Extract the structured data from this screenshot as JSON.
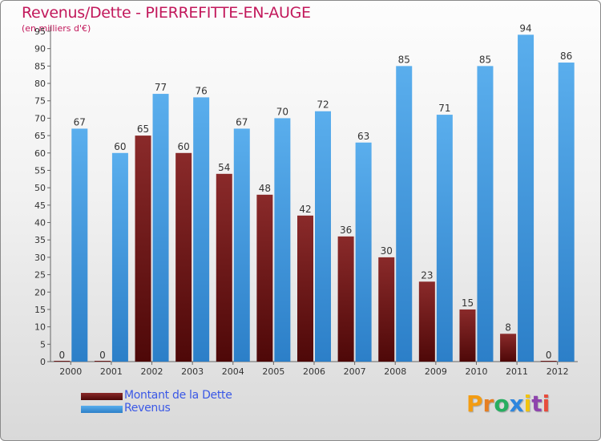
{
  "header": {
    "title": "Revenus/Dette - PIERREFITTE-EN-AUGE",
    "subtitle": "(en milliers d'€)"
  },
  "logo": {
    "text": "Proxiti",
    "letter_colors": [
      "#f39c12",
      "#e67e22",
      "#27ae60",
      "#2e86de",
      "#f1c40f",
      "#8e44ad",
      "#e74c3c"
    ]
  },
  "colors": {
    "title": "#c2185b",
    "dette": "#6e1414",
    "revenus": "#3d97de",
    "legend_text": "#3a58e6"
  },
  "chart_data": {
    "type": "bar",
    "categories": [
      "2000",
      "2001",
      "2002",
      "2003",
      "2004",
      "2005",
      "2006",
      "2007",
      "2008",
      "2009",
      "2010",
      "2011",
      "2012"
    ],
    "series": [
      {
        "name": "Montant de la Dette",
        "values": [
          0,
          0,
          65,
          60,
          54,
          48,
          42,
          36,
          30,
          23,
          15,
          8,
          0
        ]
      },
      {
        "name": "Revenus",
        "values": [
          67,
          60,
          77,
          76,
          67,
          70,
          72,
          63,
          85,
          71,
          85,
          94,
          86
        ]
      }
    ],
    "yticks": [
      0,
      5,
      10,
      15,
      20,
      25,
      30,
      35,
      40,
      45,
      50,
      55,
      60,
      65,
      70,
      75,
      80,
      85,
      90,
      95
    ],
    "ylim": [
      0,
      95
    ],
    "grid": false,
    "legend": "bottom-left"
  }
}
